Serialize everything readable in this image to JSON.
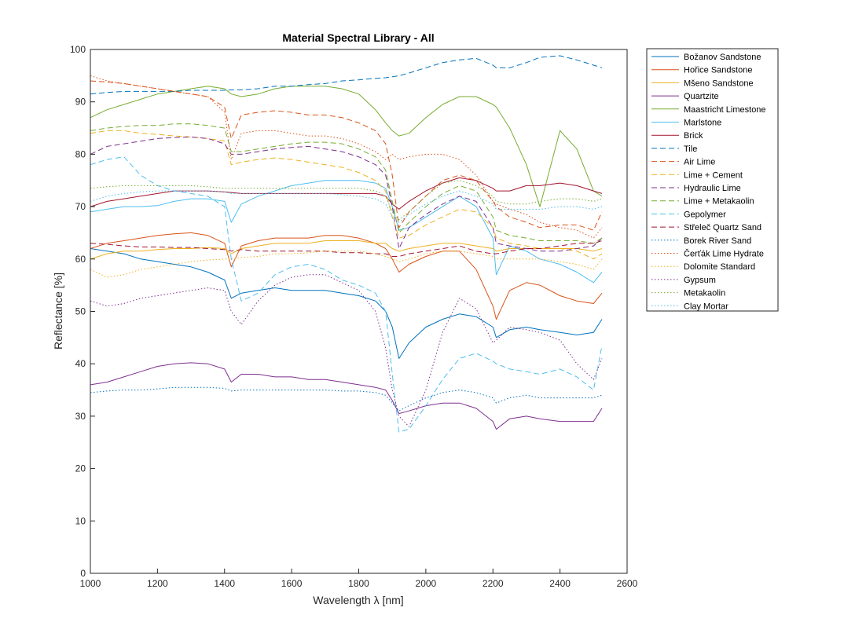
{
  "chart_data": {
    "type": "line",
    "title": "Material Spectral Library - All",
    "xlabel": "Wavelength λ [nm]",
    "ylabel": "Reflectance [%]",
    "xlim": [
      1000,
      2600
    ],
    "ylim": [
      0,
      100
    ],
    "xticks": [
      1000,
      1200,
      1400,
      1600,
      1800,
      2000,
      2200,
      2400,
      2600
    ],
    "yticks": [
      0,
      10,
      20,
      30,
      40,
      50,
      60,
      70,
      80,
      90,
      100
    ],
    "grid": false,
    "legend_placement": "outside right top",
    "x": [
      1000,
      1050,
      1100,
      1150,
      1200,
      1250,
      1300,
      1350,
      1400,
      1420,
      1450,
      1500,
      1550,
      1600,
      1650,
      1700,
      1750,
      1800,
      1850,
      1880,
      1900,
      1920,
      1950,
      2000,
      2050,
      2100,
      2150,
      2200,
      2210,
      2250,
      2300,
      2340,
      2400,
      2450,
      2500,
      2525
    ],
    "series": [
      {
        "name": "Božanov Sandstone",
        "color": "#0072BD",
        "dash": "solid",
        "values": [
          62,
          61.5,
          61,
          60,
          59.5,
          59,
          58.5,
          57.5,
          56,
          52.5,
          53.5,
          54,
          54.5,
          54,
          54,
          54,
          53.5,
          53,
          52,
          50,
          47,
          41,
          44,
          47,
          48.5,
          49.5,
          49,
          47,
          45,
          46.5,
          47,
          46.5,
          46,
          45.5,
          46,
          48.5
        ]
      },
      {
        "name": "Hořice Sandstone",
        "color": "#D95319",
        "dash": "solid",
        "values": [
          62,
          63,
          63.5,
          64,
          64.5,
          64.8,
          65,
          64.5,
          63,
          58.5,
          62.5,
          63.5,
          64,
          64,
          64,
          64.5,
          64.5,
          64,
          63,
          62,
          60,
          57.5,
          59,
          60.5,
          61.5,
          61.5,
          58,
          51,
          48.5,
          54,
          55.5,
          55,
          53,
          52,
          51.5,
          53.5
        ]
      },
      {
        "name": "Mšeno Sandstone",
        "color": "#EDB120",
        "dash": "solid",
        "values": [
          60,
          61,
          61.5,
          61.5,
          61.8,
          62,
          62,
          62.2,
          62,
          61,
          62,
          62.5,
          63,
          63,
          63,
          63.5,
          63.5,
          63.5,
          63,
          63,
          62,
          61.5,
          62,
          62.5,
          63,
          63,
          62.5,
          62,
          61.5,
          62,
          62,
          62,
          62,
          62,
          61.5,
          62
        ]
      },
      {
        "name": "Quartzite",
        "color": "#7E2F8E",
        "dash": "solid",
        "values": [
          36,
          36.5,
          37.5,
          38.5,
          39.5,
          40,
          40.2,
          40,
          39,
          36.5,
          38,
          38,
          37.5,
          37.5,
          37,
          37,
          36.5,
          36,
          35.5,
          35,
          33,
          30.5,
          31,
          32,
          32.5,
          32.5,
          31.5,
          29,
          27.5,
          29.5,
          30,
          29.5,
          29,
          29,
          29,
          31.5
        ]
      },
      {
        "name": "Maastricht Limestone",
        "color": "#77AC30",
        "dash": "solid",
        "values": [
          87,
          88.5,
          89.5,
          90.5,
          91.5,
          92,
          92.5,
          93,
          92.5,
          91.5,
          91,
          91.5,
          92.5,
          93,
          93,
          93,
          92.5,
          91.5,
          88.5,
          86,
          84.5,
          83.5,
          84,
          87,
          89.5,
          91,
          91,
          89.5,
          89,
          85,
          78,
          70,
          84.5,
          81,
          73,
          72
        ]
      },
      {
        "name": "Marlstone",
        "color": "#4DBEEE",
        "dash": "solid",
        "values": [
          69,
          69.5,
          70,
          70,
          70.2,
          71,
          71.5,
          71.5,
          71,
          67,
          70.5,
          72,
          73,
          74,
          74.5,
          75,
          75,
          75,
          74.5,
          73.5,
          70,
          65.5,
          66,
          68,
          70,
          72,
          70,
          64,
          57,
          62.5,
          61.5,
          60,
          59,
          57.5,
          55.5,
          57.5
        ]
      },
      {
        "name": "Brick",
        "color": "#A2142F",
        "dash": "solid",
        "values": [
          70,
          71,
          71.5,
          72,
          72.5,
          73,
          73,
          73,
          72.8,
          72.7,
          72.5,
          72.5,
          72.5,
          72.5,
          72.5,
          72.5,
          72.5,
          72.5,
          72.5,
          72,
          70.5,
          69.5,
          71,
          73,
          74.5,
          75.5,
          75,
          73.5,
          73,
          73,
          74,
          74,
          74.5,
          74,
          73,
          72.5
        ]
      },
      {
        "name": "Tile",
        "color": "#0072BD",
        "dash": "dash",
        "values": [
          91.5,
          91.8,
          92,
          92,
          92,
          92,
          92.2,
          92.2,
          92.2,
          92.3,
          92.3,
          92.5,
          93,
          93,
          93.3,
          93.5,
          94,
          94.2,
          94.5,
          94.6,
          94.8,
          95,
          95.5,
          96.5,
          97.5,
          98,
          98.3,
          97,
          96.5,
          96.5,
          97.5,
          98.5,
          98.8,
          98,
          97,
          96.5
        ]
      },
      {
        "name": "Air Lime",
        "color": "#D95319",
        "dash": "dash",
        "values": [
          94,
          93.8,
          93.5,
          93,
          92.5,
          92,
          91.5,
          91,
          89,
          83,
          87.5,
          88,
          88.3,
          88,
          87.5,
          87.5,
          87,
          86,
          84.5,
          82,
          76,
          66,
          69,
          72,
          75,
          76,
          75,
          71,
          70,
          68,
          67,
          66,
          66.5,
          66.5,
          65.5,
          69
        ]
      },
      {
        "name": "Lime + Cement",
        "color": "#EDB120",
        "dash": "dash",
        "values": [
          84,
          84.5,
          84.5,
          84,
          83.8,
          83.5,
          83.3,
          83,
          82.5,
          78,
          78.5,
          79,
          79.3,
          79,
          78.5,
          78,
          77.5,
          76.5,
          75,
          73,
          68,
          64,
          64.5,
          66.5,
          68,
          69.5,
          69,
          66,
          64,
          63,
          62.5,
          62,
          62,
          61.5,
          60,
          61
        ]
      },
      {
        "name": "Hydraulic Lime",
        "color": "#7E2F8E",
        "dash": "dash",
        "values": [
          80,
          81.5,
          82,
          82.5,
          83,
          83.2,
          83.3,
          83,
          82,
          80,
          80,
          80.5,
          81,
          81.3,
          81.5,
          81,
          80.5,
          79.5,
          78,
          76,
          70,
          62,
          66,
          68.5,
          70.5,
          72,
          71,
          66,
          63,
          62.5,
          62,
          61.5,
          61.5,
          62,
          62.5,
          64
        ]
      },
      {
        "name": "Lime + Metakaolin",
        "color": "#77AC30",
        "dash": "dash",
        "values": [
          84.5,
          85,
          85.3,
          85.5,
          85.5,
          85.8,
          85.8,
          85.5,
          85,
          80.5,
          80.5,
          81,
          81.5,
          82,
          82.3,
          82.3,
          82,
          81,
          79.5,
          77,
          71,
          65,
          67,
          70,
          72.5,
          74,
          73,
          68,
          65.5,
          64.5,
          64,
          63.5,
          63.5,
          63.5,
          63,
          64
        ]
      },
      {
        "name": "Gepolymer",
        "color": "#4DBEEE",
        "dash": "dash",
        "values": [
          78,
          79,
          79.5,
          76,
          74,
          73,
          72.5,
          72,
          70,
          60,
          52,
          53.5,
          57,
          58.5,
          59,
          58,
          56,
          55,
          53.5,
          50,
          38,
          27,
          27.5,
          32,
          37,
          41,
          42,
          40.5,
          40,
          39,
          38.5,
          38,
          39,
          37.5,
          35,
          43.5
        ]
      },
      {
        "name": "Střeleč Quartz Sand",
        "color": "#A2142F",
        "dash": "dash",
        "values": [
          63,
          62.8,
          62.5,
          62.3,
          62.3,
          62.2,
          62.2,
          62,
          61.8,
          61.5,
          61.8,
          61.5,
          61.5,
          61.5,
          61.5,
          61.5,
          61.2,
          61.2,
          61,
          61,
          60.5,
          60.5,
          61,
          61.5,
          62,
          62.5,
          61.5,
          61,
          61,
          61.5,
          62,
          62,
          62.5,
          63,
          63,
          63.5
        ]
      },
      {
        "name": "Borek River Sand",
        "color": "#0072BD",
        "dash": "dot",
        "values": [
          34.5,
          34.8,
          35,
          35,
          35.2,
          35.5,
          35.5,
          35.5,
          35.3,
          34.8,
          35,
          35,
          35,
          35,
          35,
          35,
          34.8,
          34.8,
          34.5,
          34,
          32.5,
          31,
          32,
          33.5,
          34.5,
          35,
          34.5,
          33.5,
          32.5,
          33.5,
          34,
          33.5,
          33.5,
          33.5,
          33.5,
          34
        ]
      },
      {
        "name": "Čerťák Lime Hydrate",
        "color": "#D95319",
        "dash": "dot",
        "values": [
          95,
          94,
          93.5,
          93,
          92.5,
          92,
          91.5,
          91,
          88,
          79,
          84,
          84.5,
          84.5,
          84,
          83.5,
          83.5,
          83,
          82,
          80.5,
          79,
          80,
          79,
          79.5,
          80,
          80,
          79,
          76,
          71,
          70.5,
          69.5,
          68.5,
          67,
          66,
          65.5,
          64,
          66
        ]
      },
      {
        "name": "Dolomite Standard",
        "color": "#EDB120",
        "dash": "dot",
        "values": [
          58,
          56.5,
          57,
          58,
          58.5,
          59,
          59.5,
          59.8,
          60,
          60,
          60.3,
          60.5,
          61,
          61,
          61.2,
          61.5,
          61.5,
          61.5,
          61,
          60.5,
          60,
          59.5,
          60,
          61,
          61.5,
          61.5,
          61,
          60.5,
          60,
          60,
          60,
          60,
          59.5,
          59,
          58,
          60
        ]
      },
      {
        "name": "Gypsum",
        "color": "#7E2F8E",
        "dash": "dot",
        "values": [
          52,
          51,
          51.5,
          52.5,
          53,
          53.5,
          54,
          54.5,
          54,
          50,
          47.5,
          52,
          55,
          56.5,
          57,
          57,
          55.5,
          54,
          50,
          43,
          35,
          30,
          28,
          35,
          46,
          52.5,
          50.5,
          44,
          44.5,
          47,
          46.5,
          46,
          44.5,
          40,
          37,
          41
        ]
      },
      {
        "name": "Metakaolin",
        "color": "#77AC30",
        "dash": "dot",
        "values": [
          73.5,
          73.8,
          74,
          74,
          74,
          74,
          74,
          73.8,
          73.5,
          73.5,
          73.5,
          73.5,
          73.5,
          73.5,
          73.5,
          73.5,
          73.5,
          73.5,
          73,
          72,
          69,
          67.5,
          69,
          72,
          74.5,
          75,
          74,
          72,
          71,
          70.5,
          70.5,
          71,
          71.5,
          71.5,
          71,
          71.5
        ]
      },
      {
        "name": "Clay Mortar",
        "color": "#4DBEEE",
        "dash": "dot",
        "values": [
          71,
          72,
          72.5,
          72.8,
          73,
          73,
          73,
          73,
          72.8,
          72.5,
          72.5,
          72.5,
          72.5,
          72.5,
          72.5,
          72.5,
          72.3,
          72,
          71.5,
          70.5,
          68,
          67,
          68.5,
          70.5,
          72,
          73,
          72,
          70.5,
          69.5,
          69.5,
          69.5,
          69.5,
          70,
          70,
          69.5,
          70
        ]
      }
    ]
  }
}
